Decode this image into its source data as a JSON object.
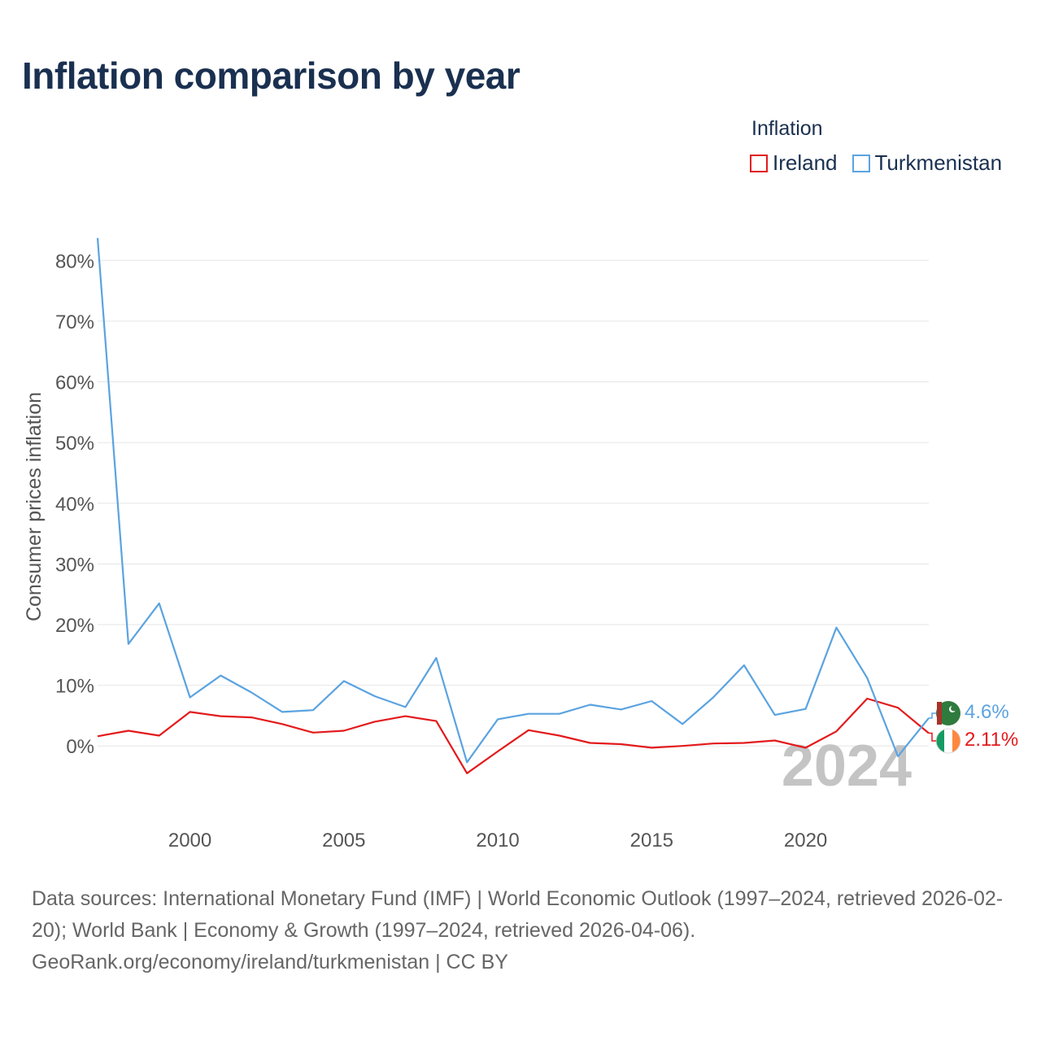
{
  "title": "Inflation comparison by year",
  "legend": {
    "title": "Inflation",
    "items": [
      {
        "label": "Ireland",
        "color": "#e31a1c"
      },
      {
        "label": "Turkmenistan",
        "color": "#5ba3e0"
      }
    ]
  },
  "chart_data": {
    "type": "line",
    "title": "Inflation comparison by year",
    "xlabel": "",
    "ylabel": "Consumer prices inflation",
    "x": [
      1997,
      1998,
      1999,
      2000,
      2001,
      2002,
      2003,
      2004,
      2005,
      2006,
      2007,
      2008,
      2009,
      2010,
      2011,
      2012,
      2013,
      2014,
      2015,
      2016,
      2017,
      2018,
      2019,
      2020,
      2021,
      2022,
      2023,
      2024
    ],
    "series": [
      {
        "name": "Ireland",
        "color": "#e31a1c",
        "values": [
          1.6,
          2.5,
          1.7,
          5.6,
          4.9,
          4.7,
          3.6,
          2.2,
          2.5,
          4.0,
          4.9,
          4.1,
          -4.5,
          -0.9,
          2.6,
          1.7,
          0.5,
          0.3,
          -0.3,
          0.0,
          0.4,
          0.5,
          0.9,
          -0.3,
          2.4,
          7.8,
          6.3,
          2.11
        ]
      },
      {
        "name": "Turkmenistan",
        "color": "#5ba3e0",
        "values": [
          83.7,
          16.8,
          23.5,
          8.0,
          11.6,
          8.8,
          5.6,
          5.9,
          10.7,
          8.2,
          6.4,
          14.5,
          -2.7,
          4.4,
          5.3,
          5.3,
          6.8,
          6.0,
          7.4,
          3.6,
          8.0,
          13.3,
          5.1,
          6.1,
          19.5,
          11.2,
          -1.7,
          4.6
        ]
      }
    ],
    "xlim": [
      1997,
      2024
    ],
    "ylim": [
      -11.5,
      85
    ],
    "x_ticks": [
      2000,
      2005,
      2010,
      2015,
      2020
    ],
    "y_ticks": [
      0,
      10,
      20,
      30,
      40,
      50,
      60,
      70,
      80
    ],
    "y_tick_labels": [
      "0%",
      "10%",
      "20%",
      "30%",
      "40%",
      "50%",
      "60%",
      "70%",
      "80%"
    ],
    "end_labels": [
      {
        "series": "Turkmenistan",
        "text": "4.6%",
        "color": "#5ba3e0"
      },
      {
        "series": "Ireland",
        "text": "2.11%",
        "color": "#e31a1c"
      }
    ],
    "year_watermark": "2024",
    "grid": true,
    "legend_position": "top-right"
  },
  "source": {
    "line1": "Data sources: International Monetary Fund (IMF) | World Economic Outlook (1997–2024, retrieved 2026-02-20); World Bank | Economy & Growth (1997–2024, retrieved 2026-04-06).",
    "line2": "GeoRank.org/economy/ireland/turkmenistan | CC BY"
  }
}
